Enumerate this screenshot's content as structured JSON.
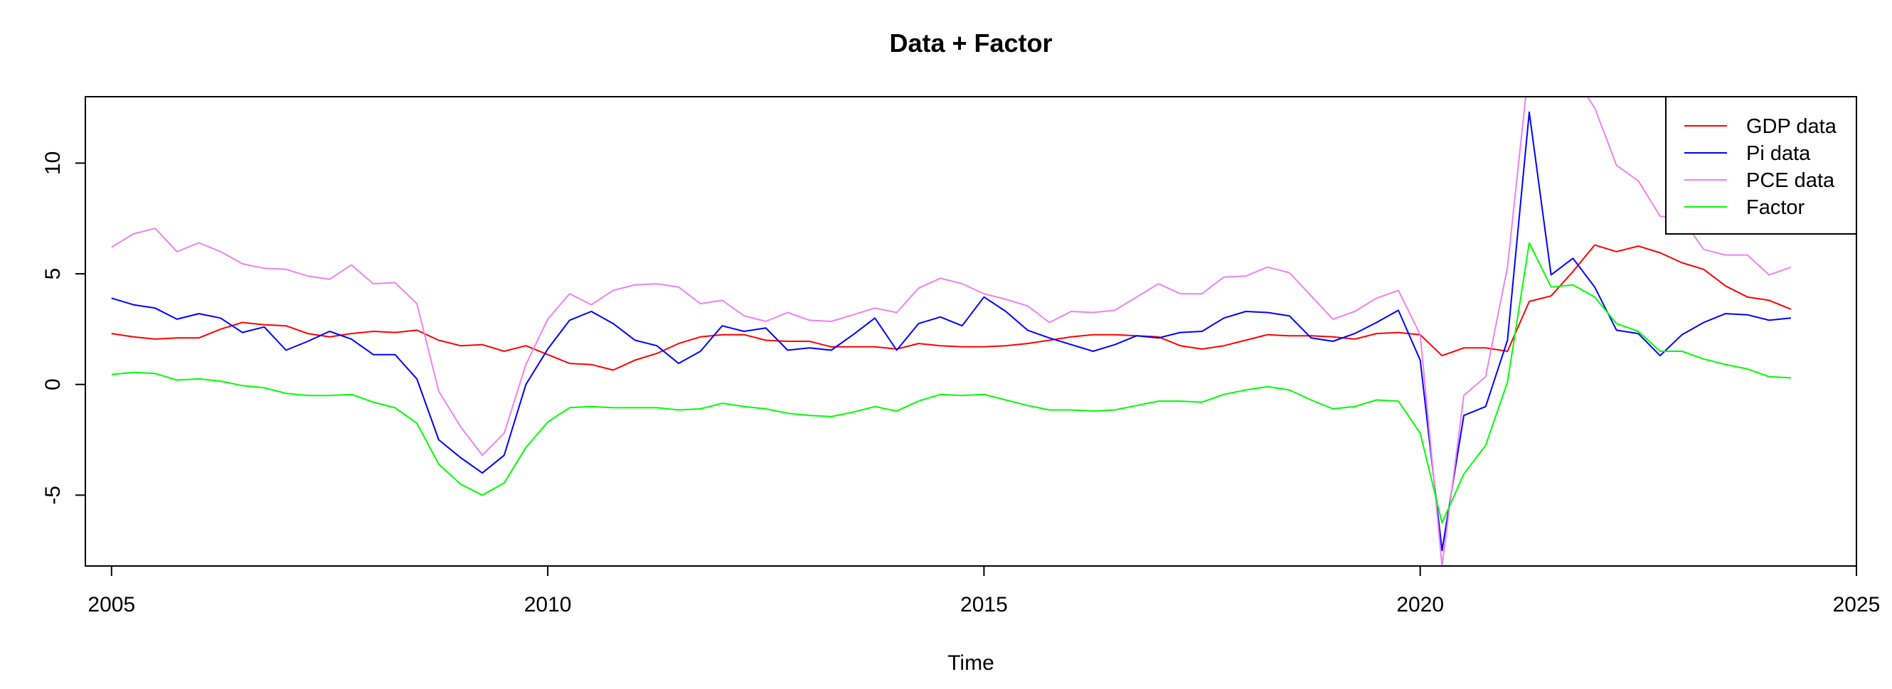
{
  "chart_data": {
    "type": "line",
    "title": "Data + Factor",
    "xlabel": "Time",
    "ylabel": "",
    "xlim": [
      2004.7,
      2025.0
    ],
    "ylim": [
      -8.2,
      13.0
    ],
    "x_ticks": [
      2005,
      2010,
      2015,
      2020,
      2025
    ],
    "y_ticks": [
      -5,
      0,
      5,
      10
    ],
    "grid": false,
    "legend_position": "top-right",
    "x_start": 2005.0,
    "x_step": 0.25,
    "series": [
      {
        "name": "GDP data",
        "color": "#ff0000",
        "values": [
          2.3,
          2.15,
          2.05,
          2.1,
          2.1,
          2.5,
          2.8,
          2.7,
          2.65,
          2.3,
          2.15,
          2.3,
          2.4,
          2.35,
          2.45,
          2.0,
          1.75,
          1.8,
          1.5,
          1.75,
          1.35,
          0.95,
          0.9,
          0.65,
          1.1,
          1.4,
          1.85,
          2.15,
          2.25,
          2.25,
          2.0,
          1.95,
          1.95,
          1.7,
          1.7,
          1.7,
          1.6,
          1.85,
          1.75,
          1.7,
          1.7,
          1.75,
          1.85,
          2.0,
          2.15,
          2.25,
          2.25,
          2.2,
          2.15,
          1.75,
          1.6,
          1.75,
          2.0,
          2.25,
          2.2,
          2.2,
          2.15,
          2.05,
          2.3,
          2.35,
          2.25,
          1.3,
          1.65,
          1.65,
          1.5,
          3.75,
          4.0,
          5.1,
          6.3,
          6.0,
          6.25,
          5.95,
          5.5,
          5.2,
          4.45,
          3.95,
          3.8,
          3.4
        ]
      },
      {
        "name": "Pi data",
        "color": "#0000ff",
        "values": [
          3.9,
          3.6,
          3.45,
          2.95,
          3.2,
          3.0,
          2.35,
          2.6,
          1.55,
          1.95,
          2.4,
          2.05,
          1.35,
          1.35,
          0.25,
          -2.5,
          -3.3,
          -4.0,
          -3.2,
          0.0,
          1.6,
          2.9,
          3.3,
          2.75,
          2.0,
          1.75,
          0.95,
          1.5,
          2.65,
          2.4,
          2.55,
          1.55,
          1.65,
          1.55,
          2.25,
          3.0,
          1.55,
          2.75,
          3.05,
          2.65,
          3.95,
          3.3,
          2.45,
          2.1,
          1.8,
          1.5,
          1.8,
          2.2,
          2.1,
          2.35,
          2.4,
          3.0,
          3.3,
          3.25,
          3.1,
          2.1,
          1.95,
          2.3,
          2.8,
          3.35,
          1.1,
          -7.5,
          -1.4,
          -1.0,
          2.0,
          12.3,
          4.95,
          5.7,
          4.4,
          2.45,
          2.3,
          1.3,
          2.25,
          2.8,
          3.2,
          3.15,
          2.9,
          3.0
        ]
      },
      {
        "name": "PCE data",
        "color": "#ee82ee",
        "values": [
          6.2,
          6.8,
          7.05,
          6.0,
          6.4,
          6.0,
          5.45,
          5.25,
          5.2,
          4.9,
          4.75,
          5.4,
          4.55,
          4.6,
          3.65,
          -0.3,
          -1.9,
          -3.2,
          -2.2,
          0.9,
          2.95,
          4.1,
          3.6,
          4.25,
          4.5,
          4.55,
          4.4,
          3.65,
          3.8,
          3.1,
          2.85,
          3.25,
          2.9,
          2.85,
          3.15,
          3.45,
          3.25,
          4.35,
          4.8,
          4.55,
          4.1,
          3.85,
          3.55,
          2.8,
          3.3,
          3.25,
          3.35,
          3.95,
          4.55,
          4.1,
          4.1,
          4.85,
          4.9,
          5.3,
          5.05,
          4.0,
          2.95,
          3.3,
          3.9,
          4.25,
          2.25,
          -8.2,
          -0.5,
          0.35,
          5.3,
          14.5,
          14.5,
          14.0,
          12.5,
          9.9,
          9.2,
          7.6,
          7.5,
          6.1,
          5.85,
          5.85,
          4.95,
          5.3
        ]
      },
      {
        "name": "Factor",
        "color": "#00ff00",
        "values": [
          0.45,
          0.55,
          0.5,
          0.2,
          0.25,
          0.15,
          -0.05,
          -0.15,
          -0.4,
          -0.5,
          -0.5,
          -0.45,
          -0.8,
          -1.05,
          -1.75,
          -3.6,
          -4.5,
          -5.0,
          -4.45,
          -2.85,
          -1.7,
          -1.05,
          -1.0,
          -1.05,
          -1.05,
          -1.05,
          -1.15,
          -1.1,
          -0.85,
          -1.0,
          -1.1,
          -1.3,
          -1.4,
          -1.45,
          -1.25,
          -1.0,
          -1.2,
          -0.75,
          -0.45,
          -0.5,
          -0.45,
          -0.7,
          -0.95,
          -1.15,
          -1.15,
          -1.2,
          -1.15,
          -0.95,
          -0.75,
          -0.75,
          -0.8,
          -0.45,
          -0.25,
          -0.1,
          -0.25,
          -0.7,
          -1.1,
          -1.0,
          -0.7,
          -0.75,
          -2.2,
          -6.25,
          -4.05,
          -2.75,
          0.1,
          6.4,
          4.4,
          4.5,
          3.95,
          2.75,
          2.4,
          1.5,
          1.5,
          1.15,
          0.9,
          0.7,
          0.35,
          0.3
        ]
      }
    ]
  }
}
